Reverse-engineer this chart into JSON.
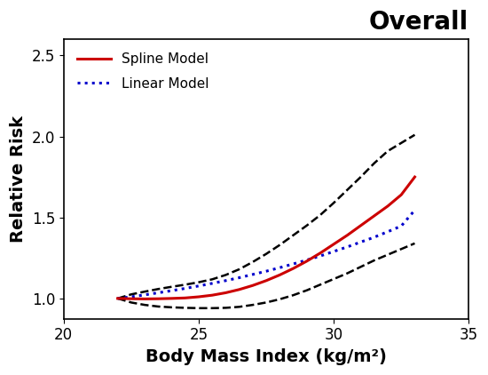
{
  "title": "Overall",
  "xlabel": "Body Mass Index (kg/m²)",
  "ylabel": "Relative Risk",
  "xlim": [
    20,
    35
  ],
  "ylim": [
    0.875,
    2.6
  ],
  "xticks": [
    20,
    25,
    30,
    35
  ],
  "yticks": [
    1.0,
    1.5,
    2.0,
    2.5
  ],
  "reference_bmi": 22,
  "spline_x": [
    22.0,
    22.5,
    23.0,
    23.5,
    24.0,
    24.5,
    25.0,
    25.5,
    26.0,
    26.5,
    27.0,
    27.5,
    28.0,
    28.5,
    29.0,
    29.5,
    30.0,
    30.5,
    31.0,
    31.5,
    32.0,
    32.5,
    33.0
  ],
  "spline_y": [
    1.0,
    0.998,
    0.997,
    0.998,
    1.0,
    1.003,
    1.01,
    1.02,
    1.035,
    1.055,
    1.08,
    1.11,
    1.145,
    1.185,
    1.23,
    1.28,
    1.335,
    1.39,
    1.45,
    1.51,
    1.57,
    1.64,
    1.75
  ],
  "spline_ci_lower": [
    1.0,
    0.975,
    0.96,
    0.95,
    0.945,
    0.942,
    0.94,
    0.94,
    0.942,
    0.948,
    0.96,
    0.975,
    0.995,
    1.02,
    1.05,
    1.085,
    1.12,
    1.155,
    1.195,
    1.235,
    1.27,
    1.305,
    1.34
  ],
  "spline_ci_upper": [
    1.0,
    1.025,
    1.042,
    1.058,
    1.072,
    1.085,
    1.1,
    1.118,
    1.145,
    1.18,
    1.225,
    1.275,
    1.33,
    1.39,
    1.45,
    1.515,
    1.59,
    1.67,
    1.75,
    1.835,
    1.91,
    1.96,
    2.01
  ],
  "linear_x": [
    22.0,
    22.5,
    23.0,
    23.5,
    24.0,
    24.5,
    25.0,
    25.5,
    26.0,
    26.5,
    27.0,
    27.5,
    28.0,
    28.5,
    29.0,
    29.5,
    30.0,
    30.5,
    31.0,
    31.5,
    32.0,
    32.5,
    33.0
  ],
  "linear_y": [
    1.0,
    1.01,
    1.022,
    1.035,
    1.048,
    1.062,
    1.077,
    1.093,
    1.11,
    1.128,
    1.148,
    1.168,
    1.19,
    1.213,
    1.237,
    1.262,
    1.29,
    1.318,
    1.348,
    1.378,
    1.412,
    1.447,
    1.545
  ],
  "spline_color": "#CC0000",
  "linear_color": "#0000CC",
  "ci_color": "#000000",
  "background_color": "#ffffff",
  "title_fontsize": 20,
  "label_fontsize": 14,
  "tick_fontsize": 12,
  "legend_fontsize": 11
}
